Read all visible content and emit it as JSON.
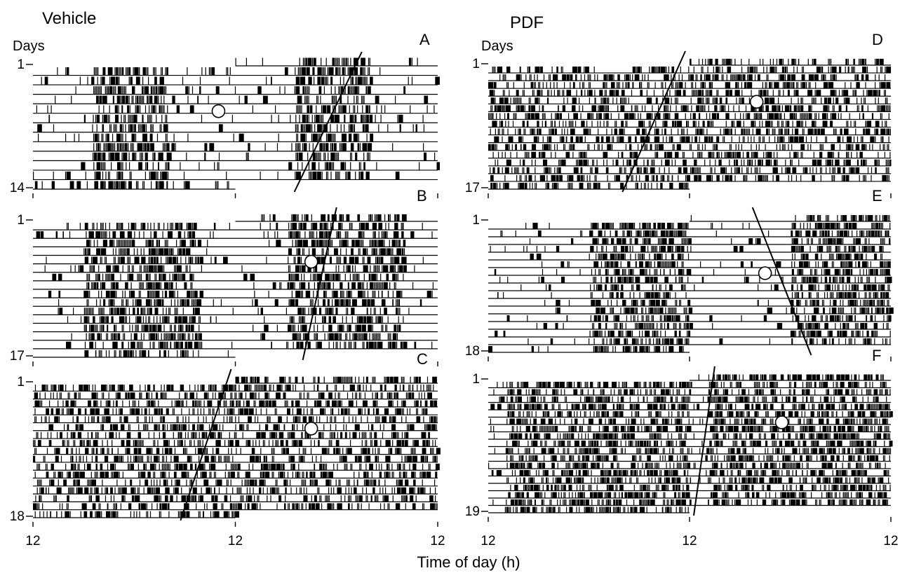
{
  "figure": {
    "group_titles": [
      "Vehicle",
      "PDF"
    ],
    "xlabel": "Time of day (h)"
  },
  "chart_data": [
    {
      "type": "actogram",
      "group": "Vehicle",
      "panel_label": "A",
      "ylabel": "Days",
      "days": 14,
      "day_ticks": [
        "1",
        "14"
      ],
      "x_ticks": [
        "12",
        "12",
        "12"
      ],
      "plot": "double-plotted",
      "hours_per_row": 48,
      "dense_activity_regions": [
        {
          "start_h": 7,
          "end_h": 16
        },
        {
          "start_h": 31,
          "end_h": 40
        }
      ],
      "onset_fit_line": {
        "day1_hour": 39,
        "last_day_hour": 31
      },
      "marker_circle": {
        "day": 6,
        "hour": 22
      }
    },
    {
      "type": "actogram",
      "group": "Vehicle",
      "panel_label": "B",
      "ylabel": "",
      "days": 17,
      "day_ticks": [
        "1",
        "17"
      ],
      "x_ticks": [],
      "plot": "double-plotted",
      "hours_per_row": 48,
      "dense_activity_regions": [
        {
          "start_h": 6,
          "end_h": 20
        },
        {
          "start_h": 30,
          "end_h": 44
        }
      ],
      "onset_fit_line": {
        "day1_hour": 36,
        "last_day_hour": 32
      },
      "marker_circle": {
        "day": 6,
        "hour": 33
      }
    },
    {
      "type": "actogram",
      "group": "Vehicle",
      "panel_label": "C",
      "ylabel": "",
      "days": 18,
      "day_ticks": [
        "1",
        "18"
      ],
      "x_ticks": [],
      "plot": "double-plotted",
      "hours_per_row": 48,
      "dense_activity_regions": [
        {
          "start_h": 0,
          "end_h": 24
        },
        {
          "start_h": 24,
          "end_h": 48
        }
      ],
      "onset_fit_line": {
        "day1_hour": 23.5,
        "last_day_hour": 17.5
      },
      "marker_circle": {
        "day": 7,
        "hour": 33
      }
    },
    {
      "type": "actogram",
      "group": "PDF",
      "panel_label": "D",
      "ylabel": "Days",
      "days": 17,
      "day_ticks": [
        "1",
        "17"
      ],
      "x_ticks": [],
      "plot": "double-plotted",
      "hours_per_row": 48,
      "dense_activity_regions": [
        {
          "start_h": 0,
          "end_h": 24
        },
        {
          "start_h": 24,
          "end_h": 48
        }
      ],
      "onset_fit_line": {
        "day1_hour": 23.5,
        "last_day_hour": 16
      },
      "marker_circle": {
        "day": 6,
        "hour": 32
      }
    },
    {
      "type": "actogram",
      "group": "PDF",
      "panel_label": "E",
      "ylabel": "",
      "days": 18,
      "day_ticks": [
        "1",
        "18"
      ],
      "x_ticks": [],
      "plot": "double-plotted",
      "hours_per_row": 48,
      "dense_activity_regions": [
        {
          "start_h": 12,
          "end_h": 24
        },
        {
          "start_h": 36,
          "end_h": 48
        }
      ],
      "onset_fit_line": {
        "day1_hour": 31.5,
        "last_day_hour": 38.5
      },
      "marker_circle": {
        "day": 8,
        "hour": 33
      }
    },
    {
      "type": "actogram",
      "group": "PDF",
      "panel_label": "F",
      "ylabel": "",
      "days": 19,
      "day_ticks": [
        "1",
        "19"
      ],
      "x_ticks": [
        "12",
        "12",
        "12"
      ],
      "plot": "double-plotted",
      "hours_per_row": 48,
      "dense_activity_regions": [
        {
          "start_h": 2,
          "end_h": 24
        },
        {
          "start_h": 26,
          "end_h": 48
        }
      ],
      "onset_fit_line": {
        "day1_hour": 27,
        "last_day_hour": 24.5
      },
      "marker_circle": {
        "day": 7,
        "hour": 35
      }
    }
  ]
}
